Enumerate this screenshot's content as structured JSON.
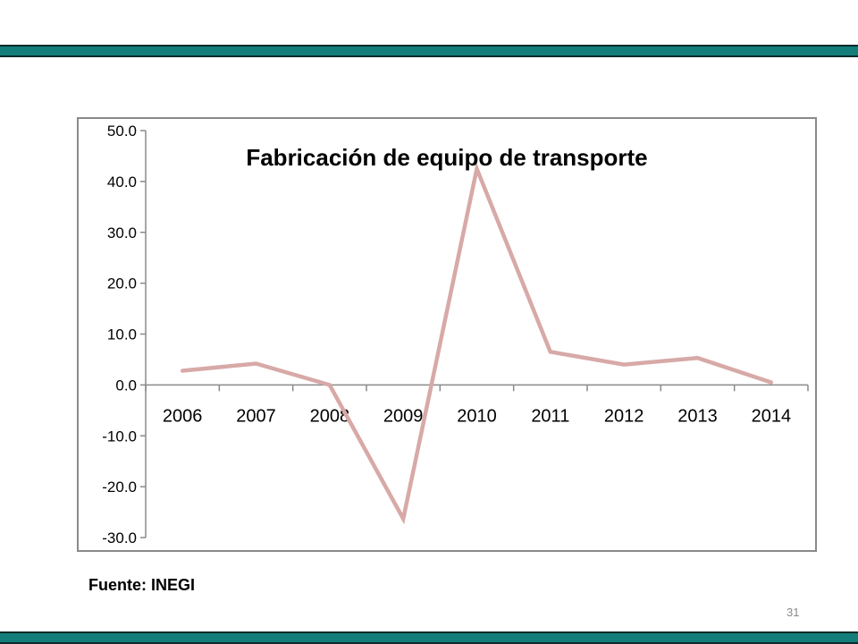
{
  "footer": {
    "source": "Fuente: INEGI",
    "page_number": "31"
  },
  "colors": {
    "band": "#127d79",
    "line": "#d7a9a7",
    "axis": "#8a8a8a"
  },
  "chart_data": {
    "type": "line",
    "title": "Fabricación de equipo de transporte",
    "xlabel": "",
    "ylabel": "",
    "categories": [
      "2006",
      "2007",
      "2008",
      "2009",
      "2010",
      "2011",
      "2012",
      "2013",
      "2014"
    ],
    "series": [
      {
        "values": [
          2.8,
          4.2,
          0.0,
          -26.3,
          42.5,
          6.5,
          4.0,
          5.3,
          0.5
        ]
      }
    ],
    "ylim": [
      -30,
      50
    ],
    "yticks": [
      "50.0",
      "40.0",
      "30.0",
      "20.0",
      "10.0",
      "0.0",
      "-10.0",
      "-20.0",
      "-30.0"
    ],
    "grid": false,
    "legend": "none"
  }
}
